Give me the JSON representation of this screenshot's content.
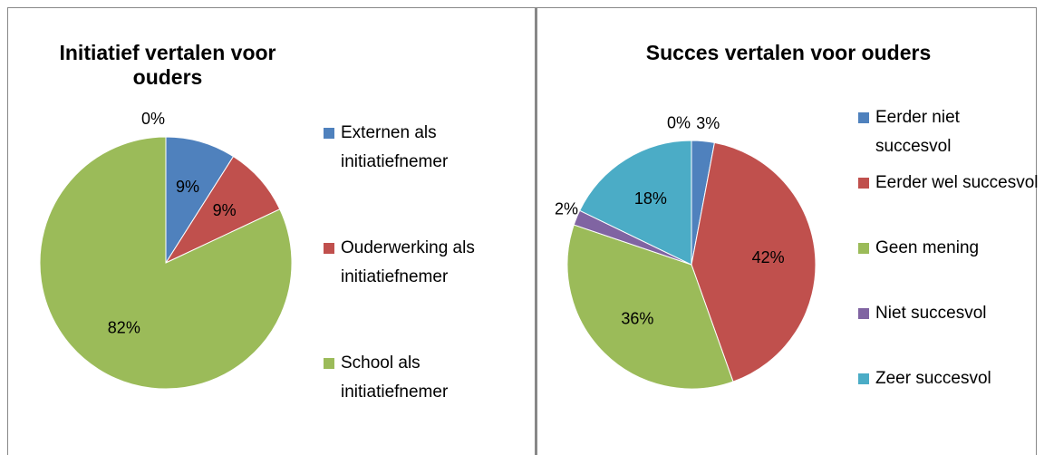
{
  "chart_data": [
    {
      "type": "pie",
      "title": "Initiatief vertalen voor ouders",
      "categories": [
        "Externen als initiatiefnemer",
        "Ouderwerking als initiatiefnemer",
        "School als initiatiefnemer",
        null
      ],
      "values": [
        9,
        9,
        82,
        0
      ],
      "value_labels": [
        "9%",
        "9%",
        "82%",
        "0%"
      ],
      "colors": [
        "#4f81bd",
        "#c0504d",
        "#9bbb59",
        "#8064a2"
      ]
    },
    {
      "type": "pie",
      "title": "Succes vertalen voor ouders",
      "categories": [
        "Eerder niet succesvol",
        "Eerder wel succesvol",
        "Geen mening",
        "Niet succesvol",
        "Zeer succesvol",
        null
      ],
      "values": [
        3,
        42,
        36,
        2,
        18,
        0
      ],
      "value_labels": [
        "3%",
        "42%",
        "36%",
        "2%",
        "18%",
        "0%"
      ],
      "colors": [
        "#4f81bd",
        "#c0504d",
        "#9bbb59",
        "#8064a2",
        "#4bacc6",
        "#f79646"
      ]
    }
  ]
}
